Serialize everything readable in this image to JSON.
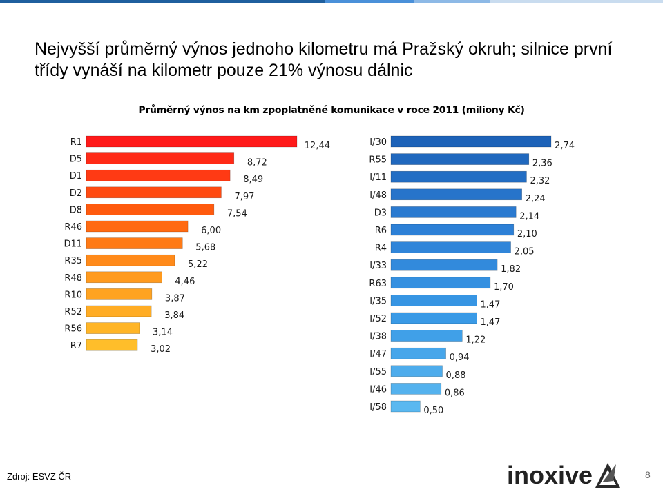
{
  "header": {
    "headline": "Nejvyšší průměrný výnos jednoho kilometru má Pražský okruh; silnice první třídy vynáší na kilometr pouze 21% výnosu dálnic"
  },
  "footer": {
    "source": "Zdroj: ESVZ ČR",
    "logo_text": "inoxive",
    "page_number": "8"
  },
  "colors": {
    "top_rule": [
      "#1f5f9e",
      "#4a90d9",
      "#8db9e6",
      "#c9dcef"
    ],
    "left_gradient": [
      "#ff1a1a",
      "#ff5a0e",
      "#ff9a1e",
      "#ffbe2a"
    ],
    "right_gradient": [
      "#1d62b8",
      "#2d80d6",
      "#3a9ae6",
      "#5ab8f0"
    ]
  },
  "chart_data": [
    {
      "type": "bar",
      "orientation": "horizontal",
      "title": "Průměrný výnos na km zpoplatněné komunikace v roce 2011 (miliony Kč)",
      "categories": [
        "R1",
        "D5",
        "D1",
        "D2",
        "D8",
        "R46",
        "D11",
        "R35",
        "R48",
        "R10",
        "R52",
        "R56",
        "R7"
      ],
      "values": [
        12.44,
        8.72,
        8.49,
        7.97,
        7.54,
        6.0,
        5.68,
        5.22,
        4.46,
        3.87,
        3.84,
        3.14,
        3.02
      ],
      "labels": [
        "12,44",
        "8,72",
        "8,49",
        "7,97",
        "7,54",
        "6,00",
        "5,68",
        "5,22",
        "4,46",
        "3,87",
        "3,84",
        "3,14",
        "3,02"
      ],
      "xlim": [
        0,
        12.44
      ],
      "grid": false,
      "legend": "none"
    },
    {
      "type": "bar",
      "orientation": "horizontal",
      "categories": [
        "I/30",
        "R55",
        "I/11",
        "I/48",
        "D3",
        "R6",
        "R4",
        "I/33",
        "R63",
        "I/35",
        "I/52",
        "I/38",
        "I/47",
        "I/55",
        "I/46",
        "I/58"
      ],
      "values": [
        2.74,
        2.36,
        2.32,
        2.24,
        2.14,
        2.1,
        2.05,
        1.82,
        1.7,
        1.47,
        1.47,
        1.22,
        0.94,
        0.88,
        0.86,
        0.5
      ],
      "labels": [
        "2,74",
        "2,36",
        "2,32",
        "2,24",
        "2,14",
        "2,10",
        "2,05",
        "1,82",
        "1,70",
        "1,47",
        "1,47",
        "1,22",
        "0,94",
        "0,88",
        "0,86",
        "0,50"
      ],
      "xlim": [
        0,
        2.74
      ],
      "grid": false,
      "legend": "none"
    }
  ]
}
